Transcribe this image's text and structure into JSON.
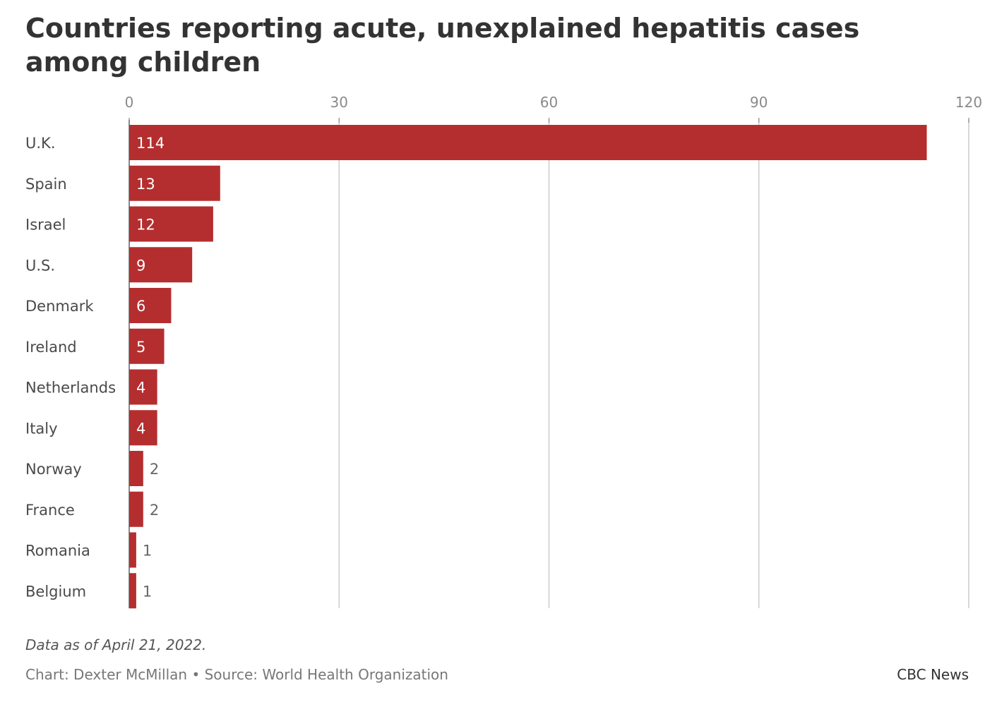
{
  "chart_data": {
    "type": "bar",
    "orientation": "horizontal",
    "title": "Countries reporting acute, unexplained hepatitis cases among children",
    "categories": [
      "U.K.",
      "Spain",
      "Israel",
      "U.S.",
      "Denmark",
      "Ireland",
      "Netherlands",
      "Italy",
      "Norway",
      "France",
      "Romania",
      "Belgium"
    ],
    "values": [
      114,
      13,
      12,
      9,
      6,
      5,
      4,
      4,
      2,
      2,
      1,
      1
    ],
    "xlim": [
      0,
      120
    ],
    "xticks": [
      0,
      30,
      60,
      90,
      120
    ],
    "grid": true,
    "axis_position": "top",
    "bar_color": "#b52e2f"
  },
  "footer": {
    "note": "Data as of April 21, 2022.",
    "credit": "Chart: Dexter McMillan • Source: World Health Organization",
    "publisher": "CBC News"
  }
}
